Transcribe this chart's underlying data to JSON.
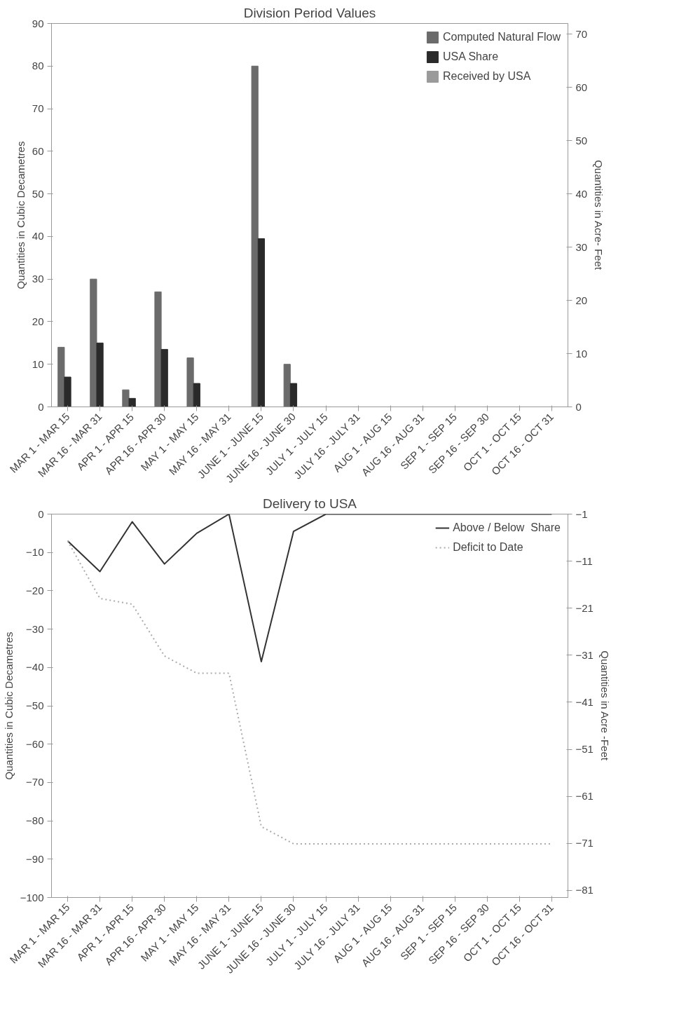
{
  "chart_data": [
    {
      "type": "bar",
      "title": "Division Period Values",
      "ylabel": "Quantities in Cubic Decametres",
      "y2label": "Quantities in Acre- Feet",
      "categories": [
        "MAR 1 - MAR 15",
        "MAR 16 - MAR 31",
        "APR 1 - APR 15",
        "APR 16 - APR 30",
        "MAY 1 - MAY 15",
        "MAY 16 - MAY 31",
        "JUNE 1 - JUNE 15",
        "JUNE 16 - JUNE 30",
        "JULY 1 - JULY 15",
        "JULY 16 - JULY 31",
        "AUG 1 - AUG 15",
        "AUG 16 - AUG 31",
        "SEP 1 - SEP 15",
        "SEP 16 - SEP 30",
        "OCT 1 - OCT 15",
        "OCT 16 - OCT 31"
      ],
      "series": [
        {
          "name": "Computed Natural Flow",
          "color": "#6b6b6b",
          "values": [
            14,
            30,
            4,
            27,
            11.5,
            0,
            80,
            10,
            0,
            0,
            0,
            0,
            0,
            0,
            0,
            0
          ]
        },
        {
          "name": "USA Share",
          "color": "#2a2a2a",
          "values": [
            7,
            15,
            2,
            13.5,
            5.5,
            0,
            39.5,
            5.5,
            0,
            0,
            0,
            0,
            0,
            0,
            0,
            0
          ]
        },
        {
          "name": "Received by USA",
          "color": "#9a9a9a",
          "values": [
            0,
            0,
            0,
            0,
            0,
            0,
            0,
            0,
            0,
            0,
            0,
            0,
            0,
            0,
            0,
            0
          ]
        }
      ],
      "ylim": [
        0,
        90
      ],
      "yticks": [
        0,
        10,
        20,
        30,
        40,
        50,
        60,
        70,
        80,
        90
      ],
      "y2lim": [
        0,
        72
      ],
      "y2ticks": [
        0,
        10,
        20,
        30,
        40,
        50,
        60,
        70
      ],
      "grid": false,
      "legend": "top right"
    },
    {
      "type": "line",
      "title": "Delivery to USA",
      "ylabel": "Quantities in Cubic Decametres",
      "y2label": "Quantities in Acre -Feet",
      "categories": [
        "MAR 1 - MAR 15",
        "MAR 16 - MAR 31",
        "APR 1 - APR 15",
        "APR 16 - APR 30",
        "MAY 1 - MAY 15",
        "MAY 16 - MAY 31",
        "JUNE 1 - JUNE 15",
        "JUNE 16 - JUNE 30",
        "JULY 1 - JULY 15",
        "JULY 16 - JULY 31",
        "AUG 1 - AUG 15",
        "AUG 16 - AUG 31",
        "SEP 1 - SEP 15",
        "SEP 16 - SEP 30",
        "OCT 1 - OCT 15",
        "OCT 16 - OCT 31"
      ],
      "series": [
        {
          "name": "Above / Below  Share",
          "color": "#333333",
          "line_style": "solid",
          "values": [
            -7,
            -15,
            -2,
            -13,
            -5,
            0,
            -38.5,
            -4.5,
            0,
            0,
            0,
            0,
            0,
            0,
            0,
            0
          ]
        },
        {
          "name": "Deficit to Date",
          "color": "#aaaaaa",
          "line_style": "dotted",
          "values": [
            -7,
            -22,
            -23.5,
            -37,
            -41.5,
            -41.5,
            -81.5,
            -86,
            -86,
            -86,
            -86,
            -86,
            -86,
            -86,
            -86,
            -86
          ]
        }
      ],
      "ylim": [
        -100,
        0
      ],
      "yticks": [
        -100,
        -90,
        -80,
        -70,
        -60,
        -50,
        -40,
        -30,
        -20,
        -10,
        0
      ],
      "y2lim": [
        -82.5,
        -1
      ],
      "y2ticks": [
        -81,
        -71,
        -61,
        -51,
        -41,
        -31,
        -21,
        -11,
        -1
      ],
      "grid": false,
      "legend": "top right"
    }
  ]
}
